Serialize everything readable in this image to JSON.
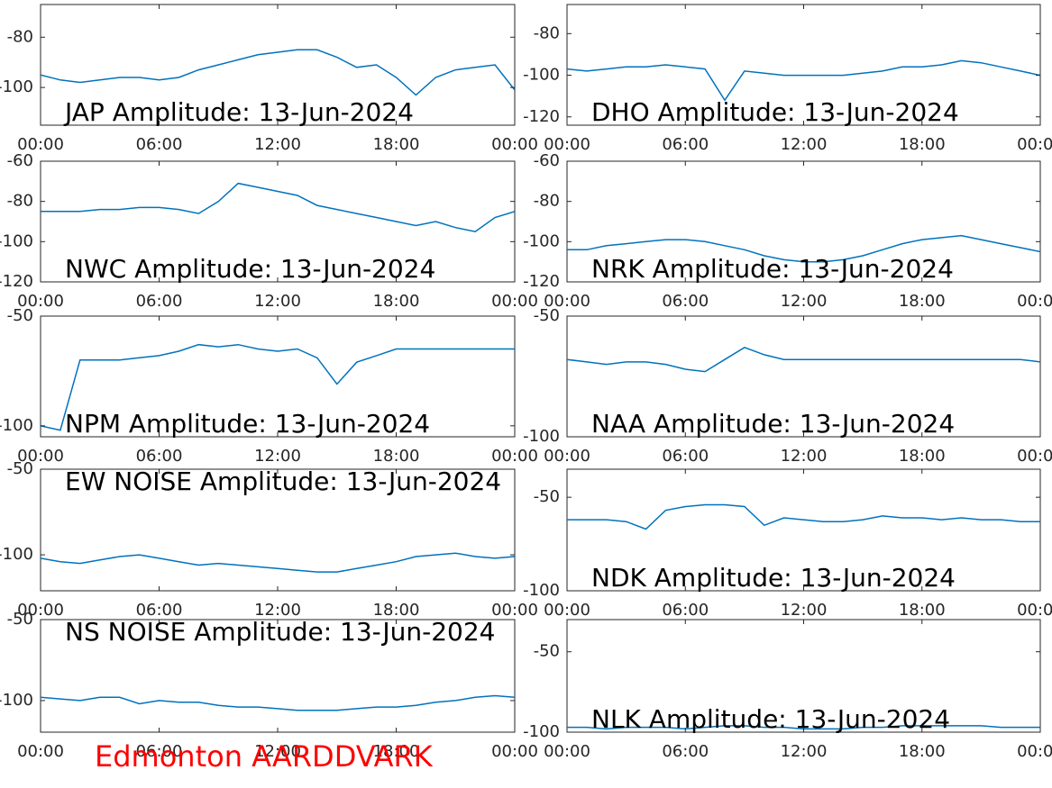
{
  "caption": "Edmonton AARDDVARK",
  "chart_data": [
    {
      "type": "line",
      "title": "JAP Amplitude: 13-Jun-2024",
      "color": "#0072bd",
      "x": [
        0,
        1,
        2,
        3,
        4,
        5,
        6,
        7,
        8,
        9,
        10,
        11,
        12,
        13,
        14,
        15,
        16,
        17,
        18,
        19,
        20,
        21,
        22,
        23,
        24
      ],
      "values": [
        -95,
        -97,
        -98,
        -97,
        -96,
        -96,
        -97,
        -96,
        -93,
        -91,
        -89,
        -87,
        -86,
        -85,
        -85,
        -88,
        -92,
        -91,
        -96,
        -103,
        -96,
        -93,
        -92,
        -91,
        -101
      ],
      "xlim": [
        0,
        24
      ],
      "xticks": [
        {
          "value": 0,
          "label": "00:00"
        },
        {
          "value": 6,
          "label": "06:00"
        },
        {
          "value": 12,
          "label": "12:00"
        },
        {
          "value": 18,
          "label": "18:00"
        },
        {
          "value": 24,
          "label": "00:00"
        }
      ],
      "ylim": [
        -115,
        -67
      ],
      "yticks": [
        -100,
        -80
      ]
    },
    {
      "type": "line",
      "title": "DHO Amplitude: 13-Jun-2024",
      "color": "#0072bd",
      "x": [
        0,
        1,
        2,
        3,
        4,
        5,
        6,
        7,
        8,
        9,
        10,
        11,
        12,
        13,
        14,
        15,
        16,
        17,
        18,
        19,
        20,
        21,
        22,
        23,
        24
      ],
      "values": [
        -97,
        -98,
        -97,
        -96,
        -96,
        -95,
        -96,
        -97,
        -112,
        -98,
        -99,
        -100,
        -100,
        -100,
        -100,
        -99,
        -98,
        -96,
        -96,
        -95,
        -93,
        -94,
        -96,
        -98,
        -100
      ],
      "xlim": [
        0,
        24
      ],
      "xticks": [
        {
          "value": 0,
          "label": "00:00"
        },
        {
          "value": 6,
          "label": "06:00"
        },
        {
          "value": 12,
          "label": "12:00"
        },
        {
          "value": 18,
          "label": "18:00"
        },
        {
          "value": 24,
          "label": "00:00"
        }
      ],
      "ylim": [
        -124,
        -66
      ],
      "yticks": [
        -120,
        -100,
        -80
      ]
    },
    {
      "type": "line",
      "title": "NWC Amplitude: 13-Jun-2024",
      "color": "#0072bd",
      "x": [
        0,
        1,
        2,
        3,
        4,
        5,
        6,
        7,
        8,
        9,
        10,
        11,
        12,
        13,
        14,
        15,
        16,
        17,
        18,
        19,
        20,
        21,
        22,
        23,
        24
      ],
      "values": [
        -85,
        -85,
        -85,
        -84,
        -84,
        -83,
        -83,
        -84,
        -86,
        -80,
        -71,
        -73,
        -75,
        -77,
        -82,
        -84,
        -86,
        -88,
        -90,
        -92,
        -90,
        -93,
        -95,
        -88,
        -85
      ],
      "xlim": [
        0,
        24
      ],
      "xticks": [
        {
          "value": 0,
          "label": "00:00"
        },
        {
          "value": 6,
          "label": "06:00"
        },
        {
          "value": 12,
          "label": "12:00"
        },
        {
          "value": 18,
          "label": "18:00"
        },
        {
          "value": 24,
          "label": "00:00"
        }
      ],
      "ylim": [
        -120,
        -60
      ],
      "yticks": [
        -120,
        -100,
        -80,
        -60
      ]
    },
    {
      "type": "line",
      "title": "NRK Amplitude: 13-Jun-2024",
      "color": "#0072bd",
      "x": [
        0,
        1,
        2,
        3,
        4,
        5,
        6,
        7,
        8,
        9,
        10,
        11,
        12,
        13,
        14,
        15,
        16,
        17,
        18,
        19,
        20,
        21,
        22,
        23,
        24
      ],
      "values": [
        -104,
        -104,
        -102,
        -101,
        -100,
        -99,
        -99,
        -100,
        -102,
        -104,
        -107,
        -109,
        -110,
        -110,
        -109,
        -107,
        -104,
        -101,
        -99,
        -98,
        -97,
        -99,
        -101,
        -103,
        -105
      ],
      "xlim": [
        0,
        24
      ],
      "xticks": [
        {
          "value": 0,
          "label": "00:00"
        },
        {
          "value": 6,
          "label": "06:00"
        },
        {
          "value": 12,
          "label": "12:00"
        },
        {
          "value": 18,
          "label": "18:00"
        },
        {
          "value": 24,
          "label": "00:00"
        }
      ],
      "ylim": [
        -120,
        -60
      ],
      "yticks": [
        -120,
        -100,
        -80,
        -60
      ]
    },
    {
      "type": "line",
      "title": "NPM Amplitude: 13-Jun-2024",
      "color": "#0072bd",
      "x": [
        0,
        1,
        2,
        3,
        4,
        5,
        6,
        7,
        8,
        9,
        10,
        11,
        12,
        13,
        14,
        15,
        16,
        17,
        18,
        19,
        20,
        21,
        22,
        23,
        24
      ],
      "values": [
        -100,
        -102,
        -70,
        -70,
        -70,
        -69,
        -68,
        -66,
        -63,
        -64,
        -63,
        -65,
        -66,
        -65,
        -69,
        -81,
        -71,
        -68,
        -65,
        -65,
        -65,
        -65,
        -65,
        -65,
        -65
      ],
      "xlim": [
        0,
        24
      ],
      "xticks": [
        {
          "value": 0,
          "label": "00:00"
        },
        {
          "value": 6,
          "label": "06:00"
        },
        {
          "value": 12,
          "label": "12:00"
        },
        {
          "value": 18,
          "label": "18:00"
        },
        {
          "value": 24,
          "label": "00:00"
        }
      ],
      "ylim": [
        -105,
        -50
      ],
      "yticks": [
        -100,
        -50
      ]
    },
    {
      "type": "line",
      "title": "NAA Amplitude: 13-Jun-2024",
      "color": "#0072bd",
      "x": [
        0,
        1,
        2,
        3,
        4,
        5,
        6,
        7,
        8,
        9,
        10,
        11,
        12,
        13,
        14,
        15,
        16,
        17,
        18,
        19,
        20,
        21,
        22,
        23,
        24
      ],
      "values": [
        -68,
        -69,
        -70,
        -69,
        -69,
        -70,
        -72,
        -73,
        -68,
        -63,
        -66,
        -68,
        -68,
        -68,
        -68,
        -68,
        -68,
        -68,
        -68,
        -68,
        -68,
        -68,
        -68,
        -68,
        -69
      ],
      "xlim": [
        0,
        24
      ],
      "xticks": [
        {
          "value": 0,
          "label": "00:00"
        },
        {
          "value": 6,
          "label": "06:00"
        },
        {
          "value": 12,
          "label": "12:00"
        },
        {
          "value": 18,
          "label": "18:00"
        },
        {
          "value": 24,
          "label": "00:00"
        }
      ],
      "ylim": [
        -100,
        -50
      ],
      "yticks": [
        -100,
        -50
      ]
    },
    {
      "type": "line",
      "title": "EW NOISE Amplitude: 13-Jun-2024",
      "color": "#0072bd",
      "x": [
        0,
        1,
        2,
        3,
        4,
        5,
        6,
        7,
        8,
        9,
        10,
        11,
        12,
        13,
        14,
        15,
        16,
        17,
        18,
        19,
        20,
        21,
        22,
        23,
        24
      ],
      "values": [
        -102,
        -104,
        -105,
        -103,
        -101,
        -100,
        -102,
        -104,
        -106,
        -105,
        -106,
        -107,
        -108,
        -109,
        -110,
        -110,
        -108,
        -106,
        -104,
        -101,
        -100,
        -99,
        -101,
        -102,
        -101
      ],
      "xlim": [
        0,
        24
      ],
      "xticks": [
        {
          "value": 0,
          "label": "00:00"
        },
        {
          "value": 6,
          "label": "06:00"
        },
        {
          "value": 12,
          "label": "12:00"
        },
        {
          "value": 18,
          "label": "18:00"
        },
        {
          "value": 24,
          "label": "00:00"
        }
      ],
      "ylim": [
        -121,
        -50
      ],
      "yticks": [
        -100,
        -50
      ]
    },
    {
      "type": "line",
      "title": "NDK Amplitude: 13-Jun-2024",
      "color": "#0072bd",
      "x": [
        0,
        1,
        2,
        3,
        4,
        5,
        6,
        7,
        8,
        9,
        10,
        11,
        12,
        13,
        14,
        15,
        16,
        17,
        18,
        19,
        20,
        21,
        22,
        23,
        24
      ],
      "values": [
        -62,
        -62,
        -62,
        -63,
        -67,
        -57,
        -55,
        -54,
        -54,
        -55,
        -65,
        -61,
        -62,
        -63,
        -63,
        -62,
        -60,
        -61,
        -61,
        -62,
        -61,
        -62,
        -62,
        -63,
        -63
      ],
      "xlim": [
        0,
        24
      ],
      "xticks": [
        {
          "value": 0,
          "label": "00:00"
        },
        {
          "value": 6,
          "label": "06:00"
        },
        {
          "value": 12,
          "label": "12:00"
        },
        {
          "value": 18,
          "label": "18:00"
        },
        {
          "value": 24,
          "label": "00:00"
        }
      ],
      "ylim": [
        -100,
        -35
      ],
      "yticks": [
        -100,
        -50
      ]
    },
    {
      "type": "line",
      "title": "NS NOISE Amplitude: 13-Jun-2024",
      "color": "#0072bd",
      "x": [
        0,
        1,
        2,
        3,
        4,
        5,
        6,
        7,
        8,
        9,
        10,
        11,
        12,
        13,
        14,
        15,
        16,
        17,
        18,
        19,
        20,
        21,
        22,
        23,
        24
      ],
      "values": [
        -98,
        -99,
        -100,
        -98,
        -98,
        -102,
        -100,
        -101,
        -101,
        -103,
        -104,
        -104,
        -105,
        -106,
        -106,
        -106,
        -105,
        -104,
        -104,
        -103,
        -101,
        -100,
        -98,
        -97,
        -98
      ],
      "xlim": [
        0,
        24
      ],
      "xticks": [
        {
          "value": 0,
          "label": "00:00"
        },
        {
          "value": 6,
          "label": "06:00"
        },
        {
          "value": 12,
          "label": "12:00"
        },
        {
          "value": 18,
          "label": "18:00"
        },
        {
          "value": 24,
          "label": "00:00"
        }
      ],
      "ylim": [
        -119.5,
        -50
      ],
      "yticks": [
        -100,
        -50
      ]
    },
    {
      "type": "line",
      "title": "NLK Amplitude: 13-Jun-2024",
      "color": "#0072bd",
      "x": [
        0,
        1,
        2,
        3,
        4,
        5,
        6,
        7,
        8,
        9,
        10,
        11,
        12,
        13,
        14,
        15,
        16,
        17,
        18,
        19,
        20,
        21,
        22,
        23,
        24
      ],
      "values": [
        -97,
        -97,
        -98,
        -97,
        -97,
        -97,
        -98,
        -97,
        -96,
        -96,
        -97,
        -97,
        -98,
        -98,
        -98,
        -97,
        -97,
        -96,
        -96,
        -96,
        -96,
        -96,
        -97,
        -97,
        -97
      ],
      "xlim": [
        0,
        24
      ],
      "xticks": [
        {
          "value": 0,
          "label": "00:00"
        },
        {
          "value": 6,
          "label": "06:00"
        },
        {
          "value": 12,
          "label": "12:00"
        },
        {
          "value": 18,
          "label": "18:00"
        },
        {
          "value": 24,
          "label": "00:00"
        }
      ],
      "ylim": [
        -100,
        -30
      ],
      "yticks": [
        -100,
        -50
      ]
    }
  ]
}
